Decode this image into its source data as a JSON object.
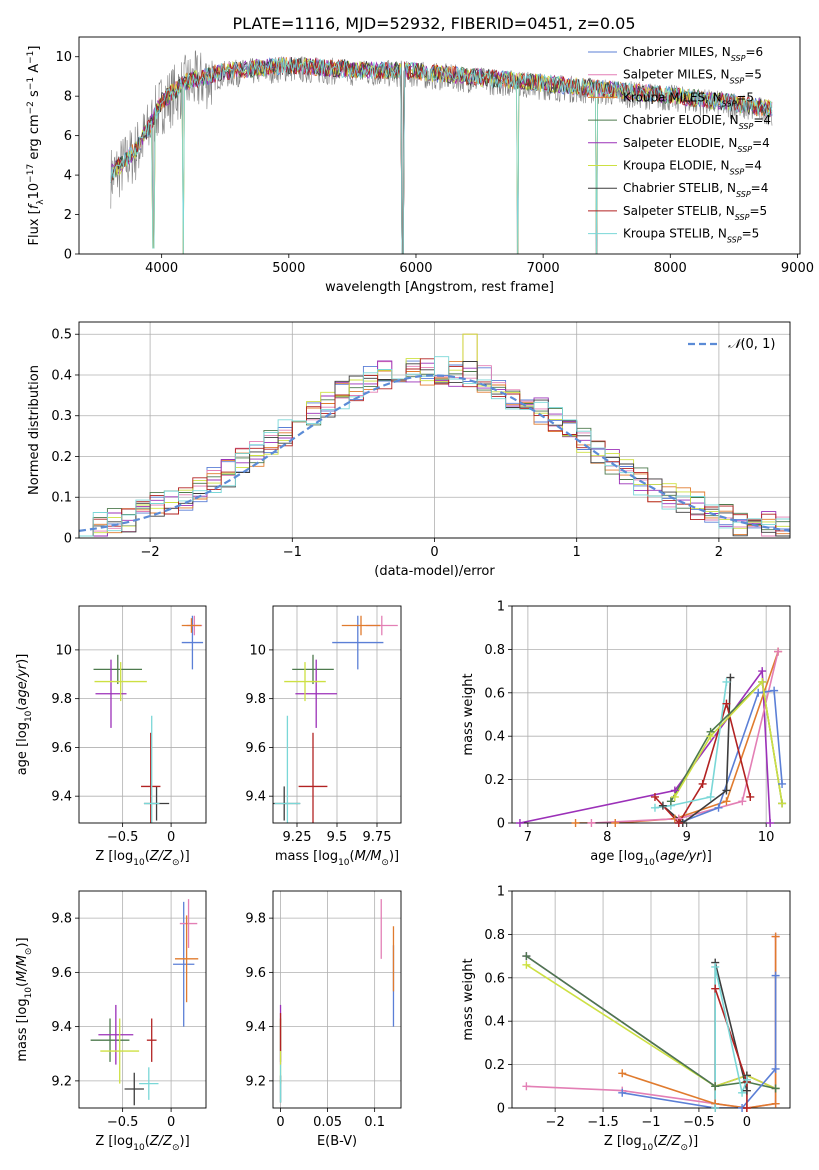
{
  "figure_title": "PLATE=1116, MJD=52932, FIBERID=0451, z=0.05",
  "colors": {
    "Chabrier MILES": "#5b7fd6",
    "Salpeter MILES": "#e37fb5",
    "Kroupa MILES": "#e07b2e",
    "Chabrier ELODIE": "#4d7a4d",
    "Salpeter ELODIE": "#9b30b8",
    "Kroupa ELODIE": "#cde042",
    "Chabrier STELIB": "#3d3d3d",
    "Salpeter STELIB": "#b22222",
    "Kroupa STELIB": "#7ad7d7"
  },
  "chart_data": [
    {
      "id": "spectrum",
      "type": "line",
      "xlabel": "wavelength [Angstrom, rest frame]",
      "ylabel": "Flux [f_λ10^-17 erg cm^-2 s^-1 A^-1]",
      "xlim": [
        3350,
        9020
      ],
      "ylim": [
        0,
        11
      ],
      "xticks": [
        4000,
        5000,
        6000,
        7000,
        8000,
        9000
      ],
      "yticks": [
        0,
        2,
        4,
        6,
        8,
        10
      ],
      "legend_position": "right",
      "legend": [
        {
          "model": "Chabrier MILES",
          "nssp": "6"
        },
        {
          "model": "Salpeter MILES",
          "nssp": "5"
        },
        {
          "model": "Kroupa MILES",
          "nssp": "5"
        },
        {
          "model": "Chabrier ELODIE",
          "nssp": "4"
        },
        {
          "model": "Salpeter ELODIE",
          "nssp": "4"
        },
        {
          "model": "Kroupa ELODIE",
          "nssp": "4"
        },
        {
          "model": "Chabrier STELIB",
          "nssp": "4"
        },
        {
          "model": "Salpeter STELIB",
          "nssp": "5"
        },
        {
          "model": "Kroupa STELIB",
          "nssp": "5"
        }
      ],
      "continuum": {
        "x": [
          3600,
          3700,
          3800,
          3900,
          4000,
          4200,
          4500,
          4800,
          5000,
          5500,
          6000,
          6500,
          7000,
          7500,
          8000,
          8500,
          8800
        ],
        "y": [
          3.9,
          4.5,
          5.2,
          6.3,
          7.6,
          8.6,
          9.1,
          9.3,
          9.4,
          9.2,
          9.1,
          8.8,
          8.5,
          8.2,
          7.9,
          7.5,
          7.2
        ]
      },
      "data_range": [
        3600,
        8800
      ],
      "dips": [
        {
          "x": 3933,
          "y": 0.3
        },
        {
          "x": 4170,
          "y": 0
        },
        {
          "x": 5893,
          "y": 0
        },
        {
          "x": 6800,
          "y": 0
        },
        {
          "x": 7420,
          "y": 0
        }
      ]
    },
    {
      "id": "residuals",
      "type": "histogram",
      "xlabel": "(data-model)/error",
      "ylabel": "Normed distribution",
      "xlim": [
        -2.5,
        2.5
      ],
      "ylim": [
        0,
        0.53
      ],
      "xticks": [
        -2,
        -1,
        0,
        1,
        2
      ],
      "yticks": [
        0.0,
        0.1,
        0.2,
        0.3,
        0.4,
        0.5
      ],
      "grid": true,
      "legend_position": "top-right",
      "reference_label": "N(0,1)",
      "bins": [
        -2.5,
        2.5,
        50
      ],
      "series_values": {
        "base": [
          0.02,
          0.03,
          0.04,
          0.05,
          0.06,
          0.08,
          0.09,
          0.1,
          0.12,
          0.14,
          0.16,
          0.19,
          0.21,
          0.24,
          0.26,
          0.29,
          0.31,
          0.33,
          0.35,
          0.37,
          0.39,
          0.4,
          0.4,
          0.41,
          0.41,
          0.41,
          0.4,
          0.4,
          0.39,
          0.37,
          0.35,
          0.33,
          0.31,
          0.29,
          0.26,
          0.24,
          0.21,
          0.19,
          0.16,
          0.14,
          0.12,
          0.1,
          0.09,
          0.08,
          0.06,
          0.05,
          0.04,
          0.03,
          0.03,
          0.02
        ],
        "peak_bin": 27,
        "peak_value": 0.5
      }
    },
    {
      "id": "age_vs_Z",
      "type": "scatter",
      "xlabel": "Z [log10(Z/Z⊙)]",
      "ylabel": "age  [log10(age/yr)]",
      "xlim": [
        -0.95,
        0.36
      ],
      "ylim": [
        9.29,
        10.18
      ],
      "xticks": [
        -0.5,
        0.0
      ],
      "yticks": [
        9.4,
        9.6,
        9.8,
        10.0
      ],
      "grid": true,
      "points": [
        {
          "model": "Chabrier MILES",
          "x": 0.22,
          "y": 10.03,
          "xerr": 0.11,
          "yerr": 0.11
        },
        {
          "model": "Salpeter MILES",
          "x": 0.24,
          "y": 10.1,
          "xerr": 0.08,
          "yerr": 0.04
        },
        {
          "model": "Kroupa MILES",
          "x": 0.21,
          "y": 10.1,
          "xerr": 0.1,
          "yerr": 0.03
        },
        {
          "model": "Chabrier ELODIE",
          "x": -0.55,
          "y": 9.92,
          "xerr": 0.25,
          "yerr": 0.06
        },
        {
          "model": "Salpeter ELODIE",
          "x": -0.62,
          "y": 9.82,
          "xerr": 0.16,
          "yerr": 0.14
        },
        {
          "model": "Kroupa ELODIE",
          "x": -0.52,
          "y": 9.87,
          "xerr": 0.27,
          "yerr": 0.08
        },
        {
          "model": "Chabrier STELIB",
          "x": -0.15,
          "y": 9.37,
          "xerr": 0.13,
          "yerr": 0.07
        },
        {
          "model": "Salpeter STELIB",
          "x": -0.21,
          "y": 9.44,
          "xerr": 0.1,
          "yerr": 0.22
        },
        {
          "model": "Kroupa STELIB",
          "x": -0.2,
          "y": 9.37,
          "xerr": 0.08,
          "yerr": 0.36
        }
      ]
    },
    {
      "id": "age_vs_mass",
      "type": "scatter",
      "xlabel": "mass [log10(M/M⊙)]",
      "ylabel": "",
      "xlim": [
        9.1,
        9.9
      ],
      "ylim": [
        9.29,
        10.18
      ],
      "xticks": [
        9.25,
        9.5,
        9.75
      ],
      "yticks": [
        9.4,
        9.6,
        9.8,
        10.0
      ],
      "grid": true,
      "points": [
        {
          "model": "Chabrier MILES",
          "x": 9.63,
          "y": 10.03,
          "xerr": 0.16,
          "yerr": 0.11
        },
        {
          "model": "Salpeter MILES",
          "x": 9.78,
          "y": 10.1,
          "xerr": 0.1,
          "yerr": 0.04
        },
        {
          "model": "Kroupa MILES",
          "x": 9.65,
          "y": 10.1,
          "xerr": 0.12,
          "yerr": 0.04
        },
        {
          "model": "Chabrier ELODIE",
          "x": 9.35,
          "y": 9.92,
          "xerr": 0.13,
          "yerr": 0.06
        },
        {
          "model": "Salpeter ELODIE",
          "x": 9.37,
          "y": 9.82,
          "xerr": 0.13,
          "yerr": 0.14
        },
        {
          "model": "Kroupa ELODIE",
          "x": 9.3,
          "y": 9.87,
          "xerr": 0.13,
          "yerr": 0.08
        },
        {
          "model": "Chabrier STELIB",
          "x": 9.17,
          "y": 9.37,
          "xerr": 0.1,
          "yerr": 0.07
        },
        {
          "model": "Salpeter STELIB",
          "x": 9.35,
          "y": 9.44,
          "xerr": 0.09,
          "yerr": 0.22
        },
        {
          "model": "Kroupa STELIB",
          "x": 9.19,
          "y": 9.37,
          "xerr": 0.08,
          "yerr": 0.36
        }
      ]
    },
    {
      "id": "mw_vs_age",
      "type": "line",
      "xlabel": "age  [log10(age/yr)]",
      "ylabel": "mass weight",
      "xlim": [
        6.8,
        10.3
      ],
      "ylim": [
        0.0,
        1.0
      ],
      "xticks": [
        7,
        8,
        9,
        10
      ],
      "yticks": [
        0.0,
        0.2,
        0.4,
        0.6,
        0.8,
        1.0
      ],
      "grid": true,
      "series": [
        {
          "model": "Salpeter ELODIE",
          "x": [
            6.9,
            8.85,
            9.95,
            10.05
          ],
          "y": [
            0.0,
            0.15,
            0.7,
            0.0
          ]
        },
        {
          "model": "Kroupa MILES",
          "x": [
            7.6,
            8.1,
            8.85,
            9.5,
            10.15
          ],
          "y": [
            0.0,
            0.0,
            0.02,
            0.1,
            0.79
          ]
        },
        {
          "model": "Salpeter MILES",
          "x": [
            7.8,
            8.9,
            9.7,
            10.15
          ],
          "y": [
            0.0,
            0.02,
            0.1,
            0.79
          ]
        },
        {
          "model": "Chabrier MILES",
          "x": [
            8.9,
            9.4,
            9.9,
            10.1,
            10.2
          ],
          "y": [
            0.0,
            0.07,
            0.6,
            0.61,
            0.18
          ]
        },
        {
          "model": "Chabrier STELIB",
          "x": [
            8.7,
            8.95,
            9.5,
            9.55
          ],
          "y": [
            0.08,
            0.0,
            0.15,
            0.67
          ]
        },
        {
          "model": "Salpeter STELIB",
          "x": [
            8.6,
            8.9,
            9.2,
            9.5,
            9.8
          ],
          "y": [
            0.12,
            0.0,
            0.18,
            0.55,
            0.12
          ]
        },
        {
          "model": "Kroupa STELIB",
          "x": [
            8.6,
            8.8,
            9.3,
            9.5
          ],
          "y": [
            0.07,
            0.08,
            0.12,
            0.65
          ]
        },
        {
          "model": "Chabrier ELODIE",
          "x": [
            8.8,
            9.3,
            9.95,
            10.2
          ],
          "y": [
            0.1,
            0.42,
            0.65,
            0.09
          ]
        },
        {
          "model": "Kroupa ELODIE",
          "x": [
            8.85,
            9.3,
            9.95,
            10.2
          ],
          "y": [
            0.12,
            0.4,
            0.65,
            0.09
          ]
        }
      ]
    },
    {
      "id": "mass_vs_Z",
      "type": "scatter",
      "xlabel": "Z [log10(Z/Z⊙)]",
      "ylabel": "mass [log10(M/M⊙)]",
      "xlim": [
        -0.95,
        0.36
      ],
      "ylim": [
        9.1,
        9.9
      ],
      "xticks": [
        -0.5,
        0.0
      ],
      "yticks": [
        9.2,
        9.4,
        9.6,
        9.8
      ],
      "grid": true,
      "points": [
        {
          "model": "Chabrier MILES",
          "x": 0.13,
          "y": 9.63,
          "xerr": 0.11,
          "yerr": 0.23
        },
        {
          "model": "Salpeter MILES",
          "x": 0.18,
          "y": 9.78,
          "xerr": 0.09,
          "yerr": 0.09
        },
        {
          "model": "Kroupa MILES",
          "x": 0.16,
          "y": 9.65,
          "xerr": 0.12,
          "yerr": 0.16
        },
        {
          "model": "Chabrier ELODIE",
          "x": -0.63,
          "y": 9.35,
          "xerr": 0.2,
          "yerr": 0.08
        },
        {
          "model": "Salpeter ELODIE",
          "x": -0.57,
          "y": 9.37,
          "xerr": 0.18,
          "yerr": 0.11
        },
        {
          "model": "Kroupa ELODIE",
          "x": -0.53,
          "y": 9.31,
          "xerr": 0.2,
          "yerr": 0.12
        },
        {
          "model": "Chabrier STELIB",
          "x": -0.38,
          "y": 9.17,
          "xerr": 0.1,
          "yerr": 0.06
        },
        {
          "model": "Salpeter STELIB",
          "x": -0.2,
          "y": 9.35,
          "xerr": 0.05,
          "yerr": 0.08
        },
        {
          "model": "Kroupa STELIB",
          "x": -0.23,
          "y": 9.19,
          "xerr": 0.1,
          "yerr": 0.06
        }
      ]
    },
    {
      "id": "mass_vs_EBV",
      "type": "scatter",
      "xlabel": "E(B-V)",
      "ylabel": "",
      "xlim": [
        -0.008,
        0.128
      ],
      "ylim": [
        9.1,
        9.9
      ],
      "xticks": [
        0.0,
        0.05,
        0.1
      ],
      "yticks": [
        9.2,
        9.4,
        9.6,
        9.8
      ],
      "grid": true,
      "points": [
        {
          "model": "Chabrier MILES",
          "x": 0.12,
          "y": 9.55,
          "xerr": 0.0,
          "yerr": 0.15
        },
        {
          "model": "Salpeter MILES",
          "x": 0.107,
          "y": 9.76,
          "xerr": 0.0,
          "yerr": 0.11
        },
        {
          "model": "Kroupa MILES",
          "x": 0.12,
          "y": 9.65,
          "xerr": 0.0,
          "yerr": 0.12
        },
        {
          "model": "Chabrier ELODIE",
          "x": 0.0,
          "y": 9.35,
          "xerr": 0.0,
          "yerr": 0.08
        },
        {
          "model": "Salpeter ELODIE",
          "x": 0.0,
          "y": 9.37,
          "xerr": 0.0,
          "yerr": 0.11
        },
        {
          "model": "Kroupa ELODIE",
          "x": 0.0,
          "y": 9.31,
          "xerr": 0.0,
          "yerr": 0.12
        },
        {
          "model": "Chabrier STELIB",
          "x": 0.0,
          "y": 9.17,
          "xerr": 0.0,
          "yerr": 0.05
        },
        {
          "model": "Salpeter STELIB",
          "x": 0.0,
          "y": 9.38,
          "xerr": 0.0,
          "yerr": 0.07
        },
        {
          "model": "Kroupa STELIB",
          "x": 0.0,
          "y": 9.19,
          "xerr": 0.0,
          "yerr": 0.07
        }
      ]
    },
    {
      "id": "mw_vs_Z",
      "type": "line",
      "xlabel": "Z [log10(Z/Z⊙)]",
      "ylabel": "mass weight",
      "xlim": [
        -2.45,
        0.45
      ],
      "ylim": [
        0.0,
        1.0
      ],
      "xticks": [
        -2.0,
        -1.5,
        -1.0,
        -0.5,
        0.0
      ],
      "yticks": [
        0.0,
        0.2,
        0.4,
        0.6,
        0.8,
        1.0
      ],
      "grid": true,
      "series": [
        {
          "model": "Salpeter ELODIE",
          "x": [
            -2.3,
            -0.33,
            0.0,
            0.3
          ],
          "y": [
            0.7,
            0.1,
            0.15,
            0.09
          ]
        },
        {
          "model": "Kroupa ELODIE",
          "x": [
            -2.3,
            -0.33,
            0.0,
            0.3
          ],
          "y": [
            0.66,
            0.1,
            0.15,
            0.09
          ]
        },
        {
          "model": "Chabrier ELODIE",
          "x": [
            -2.3,
            -0.33,
            0.0,
            0.3
          ],
          "y": [
            0.7,
            0.1,
            0.12,
            0.09
          ]
        },
        {
          "model": "Salpeter MILES",
          "x": [
            -2.3,
            -1.3,
            -0.33,
            0.0,
            0.3,
            0.3
          ],
          "y": [
            0.1,
            0.08,
            0.02,
            0.0,
            0.02,
            0.79
          ]
        },
        {
          "model": "Kroupa MILES",
          "x": [
            -1.3,
            -0.33,
            0.0,
            0.3,
            0.3
          ],
          "y": [
            0.16,
            0.02,
            0.0,
            0.02,
            0.79
          ]
        },
        {
          "model": "Chabrier MILES",
          "x": [
            -1.3,
            -0.33,
            -0.05,
            0.3,
            0.3
          ],
          "y": [
            0.07,
            0.0,
            0.0,
            0.18,
            0.61
          ]
        },
        {
          "model": "Chabrier STELIB",
          "x": [
            -0.33,
            -0.33,
            0.0,
            0.0
          ],
          "y": [
            0.0,
            0.67,
            0.08,
            0.15
          ]
        },
        {
          "model": "Salpeter STELIB",
          "x": [
            -0.33,
            -0.33,
            0.0,
            0.0
          ],
          "y": [
            0.0,
            0.55,
            0.12,
            0.0
          ]
        },
        {
          "model": "Kroupa STELIB",
          "x": [
            -0.33,
            -0.33,
            -0.05,
            0.0
          ],
          "y": [
            0.0,
            0.65,
            0.07,
            0.13
          ]
        }
      ]
    }
  ]
}
